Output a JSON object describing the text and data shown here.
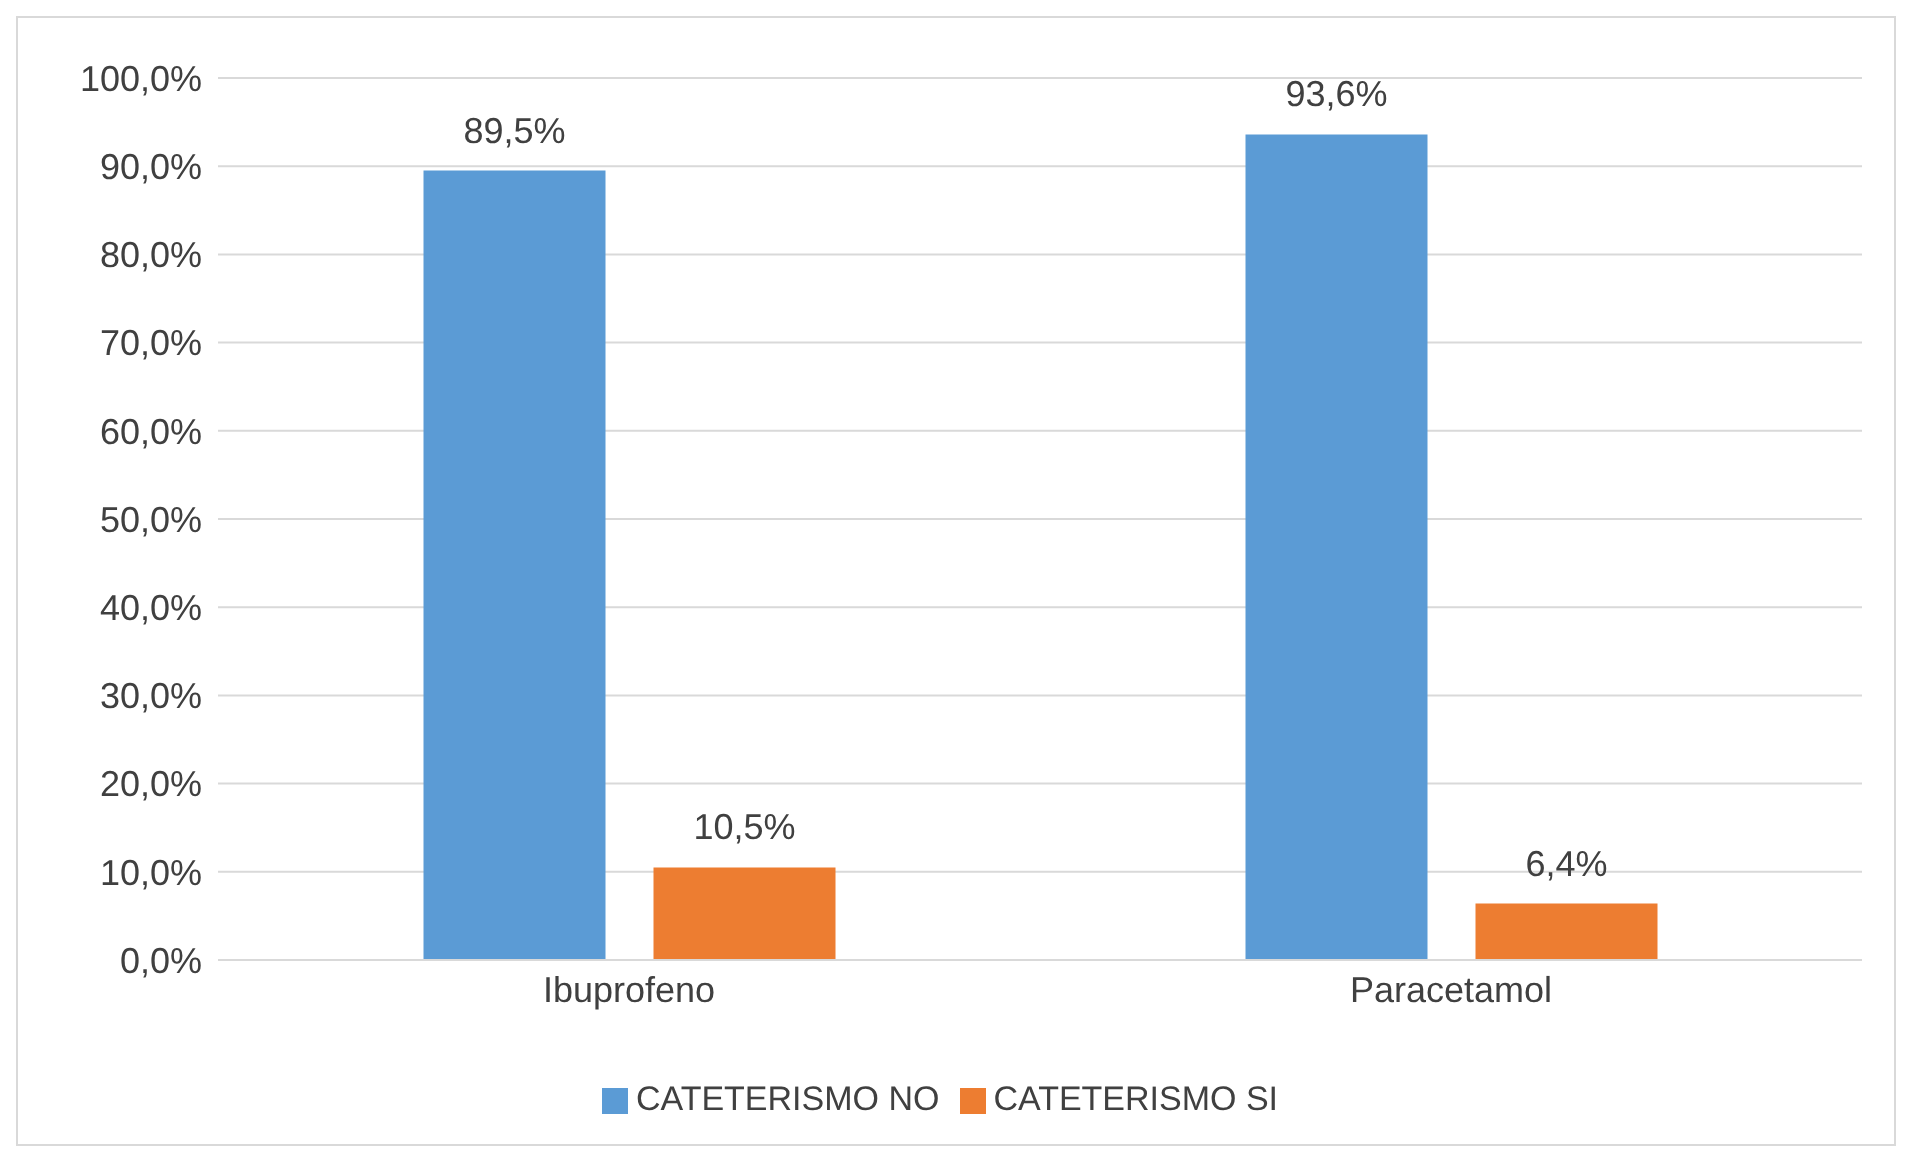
{
  "chart_data": {
    "type": "bar",
    "categories": [
      "Ibuprofeno",
      "Paracetamol"
    ],
    "series": [
      {
        "name": "CATETERISMO NO",
        "color": "#5b9bd5",
        "values": [
          89.5,
          93.6
        ],
        "value_labels": [
          "89,5%",
          "93,6%"
        ]
      },
      {
        "name": "CATETERISMO SI",
        "color": "#ed7d31",
        "values": [
          10.5,
          6.4
        ],
        "value_labels": [
          "10,5%",
          "6,4%"
        ]
      }
    ],
    "ylim": [
      0,
      100
    ],
    "yticks": [
      {
        "value": 0,
        "label": "0,0%"
      },
      {
        "value": 10,
        "label": "10,0%"
      },
      {
        "value": 20,
        "label": "20,0%"
      },
      {
        "value": 30,
        "label": "30,0%"
      },
      {
        "value": 40,
        "label": "40,0%"
      },
      {
        "value": 50,
        "label": "50,0%"
      },
      {
        "value": 60,
        "label": "60,0%"
      },
      {
        "value": 70,
        "label": "70,0%"
      },
      {
        "value": 80,
        "label": "80,0%"
      },
      {
        "value": 90,
        "label": "90,0%"
      },
      {
        "value": 100,
        "label": "100,0%"
      }
    ],
    "grid": "y",
    "legend": "bottom"
  }
}
